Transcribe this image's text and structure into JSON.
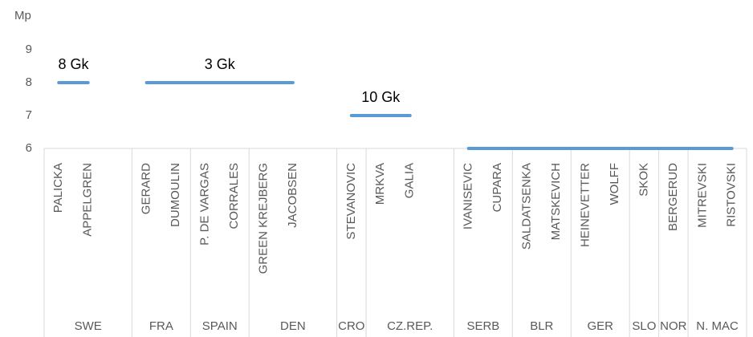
{
  "chart_data": {
    "type": "line",
    "y_axis_title": "Mp",
    "ylim": [
      6,
      9
    ],
    "yticks": [
      6,
      7,
      8,
      9
    ],
    "groups": [
      {
        "name": "SWE",
        "categories": [
          "PALICKA",
          "APPELGREN",
          null
        ]
      },
      {
        "name": "FRA",
        "categories": [
          "GERARD",
          "DUMOULIN"
        ]
      },
      {
        "name": "SPAIN",
        "categories": [
          "P. DE VARGAS",
          "CORRALES"
        ]
      },
      {
        "name": "DEN",
        "categories": [
          "GREEN KREJBERG",
          "JACOBSEN",
          null
        ]
      },
      {
        "name": "CRO",
        "categories": [
          "STEVANOVIC"
        ]
      },
      {
        "name": "CZ.REP.",
        "categories": [
          "MRKVA",
          "GALIA",
          null
        ]
      },
      {
        "name": "SERB",
        "categories": [
          "IVANISEVIC",
          "CUPARA"
        ]
      },
      {
        "name": "BLR",
        "categories": [
          "SALDATSENKA",
          "MATSKEVICH"
        ]
      },
      {
        "name": "GER",
        "categories": [
          "HEINEVETTER",
          "WOLFF"
        ]
      },
      {
        "name": "SLO",
        "categories": [
          "SKOK"
        ]
      },
      {
        "name": "NOR",
        "categories": [
          "BERGERUD"
        ]
      },
      {
        "name": "N. MAC",
        "categories": [
          "MITREVSKI",
          "RISTOVSKI"
        ]
      }
    ],
    "series": [
      {
        "color": "#5b9bd5",
        "values": [
          8,
          8,
          null,
          8,
          8,
          8,
          8,
          8,
          8,
          null,
          7,
          7,
          7,
          null,
          6,
          6,
          6,
          6,
          6,
          6,
          6,
          6,
          6,
          6
        ]
      }
    ],
    "annotations": [
      "8 Gk",
      "3 Gk",
      "10 Gk"
    ]
  }
}
